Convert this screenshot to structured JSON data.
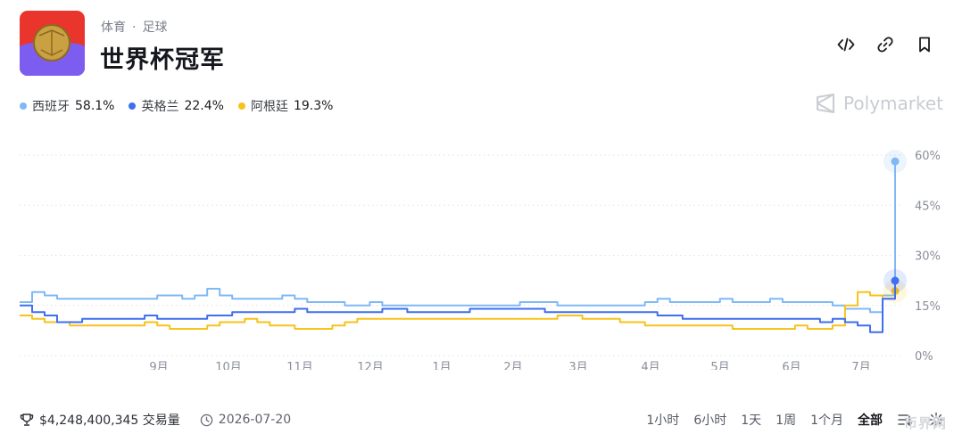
{
  "header": {
    "category": "体育",
    "subcategory": "足球",
    "title": "世界杯冠军"
  },
  "actions": [
    {
      "name": "embed-icon"
    },
    {
      "name": "link-icon"
    },
    {
      "name": "bookmark-icon"
    }
  ],
  "legend": [
    {
      "name": "西班牙",
      "value": "58.1%",
      "color": "#7fb8f5"
    },
    {
      "name": "英格兰",
      "value": "22.4%",
      "color": "#3f6ff0"
    },
    {
      "name": "阿根廷",
      "value": "19.3%",
      "color": "#f7c21a"
    }
  ],
  "brand": {
    "name": "Polymarket",
    "icon": "polymarket-icon"
  },
  "chart_data": {
    "type": "line",
    "x_tick_labels": [
      "9月",
      "10月",
      "11月",
      "12月",
      "1月",
      "2月",
      "3月",
      "4月",
      "5月",
      "6月",
      "7月"
    ],
    "y_tick_labels": [
      "60%",
      "45%",
      "30%",
      "15%",
      "0%"
    ],
    "ylim": [
      0,
      60
    ],
    "grid": true,
    "legend_position": "top-left",
    "series": [
      {
        "name": "西班牙",
        "color": "#7fb8f5",
        "values": [
          16,
          19,
          18,
          17,
          17,
          17,
          17,
          17,
          17,
          17,
          17,
          18,
          18,
          17,
          18,
          20,
          18,
          17,
          17,
          17,
          17,
          18,
          17,
          16,
          16,
          16,
          15,
          15,
          16,
          15,
          15,
          15,
          15,
          15,
          15,
          15,
          15,
          15,
          15,
          15,
          16,
          16,
          16,
          15,
          15,
          15,
          15,
          15,
          15,
          15,
          16,
          17,
          16,
          16,
          16,
          16,
          17,
          16,
          16,
          16,
          17,
          16,
          16,
          16,
          16,
          15,
          14,
          14,
          13,
          18,
          58.1
        ]
      },
      {
        "name": "英格兰",
        "color": "#3f6ff0",
        "values": [
          15,
          13,
          12,
          10,
          10,
          11,
          11,
          11,
          11,
          11,
          12,
          11,
          11,
          11,
          11,
          12,
          12,
          13,
          13,
          13,
          13,
          13,
          14,
          13,
          13,
          13,
          13,
          13,
          13,
          14,
          14,
          13,
          13,
          13,
          13,
          13,
          14,
          14,
          14,
          14,
          14,
          14,
          13,
          13,
          13,
          13,
          13,
          13,
          13,
          13,
          13,
          12,
          12,
          11,
          11,
          11,
          11,
          11,
          11,
          11,
          11,
          11,
          11,
          11,
          10,
          11,
          10,
          9,
          7,
          17,
          22.4
        ]
      },
      {
        "name": "阿根廷",
        "color": "#f7c21a",
        "values": [
          12,
          11,
          10,
          10,
          9,
          9,
          9,
          9,
          9,
          9,
          10,
          9,
          8,
          8,
          8,
          9,
          10,
          10,
          11,
          10,
          9,
          9,
          8,
          8,
          8,
          9,
          10,
          11,
          11,
          11,
          11,
          11,
          11,
          11,
          11,
          11,
          11,
          11,
          11,
          11,
          11,
          11,
          11,
          12,
          12,
          11,
          11,
          11,
          10,
          10,
          9,
          9,
          9,
          9,
          9,
          9,
          9,
          8,
          8,
          8,
          8,
          8,
          9,
          8,
          8,
          9,
          15,
          19,
          18,
          17,
          19.3
        ]
      }
    ]
  },
  "footer": {
    "volume": "$4,248,400,345 交易量",
    "date": "2026-07-20",
    "ranges": [
      "1小时",
      "6小时",
      "1天",
      "1周",
      "1个月",
      "全部"
    ],
    "active_range": "全部"
  },
  "watermark": "币界网"
}
